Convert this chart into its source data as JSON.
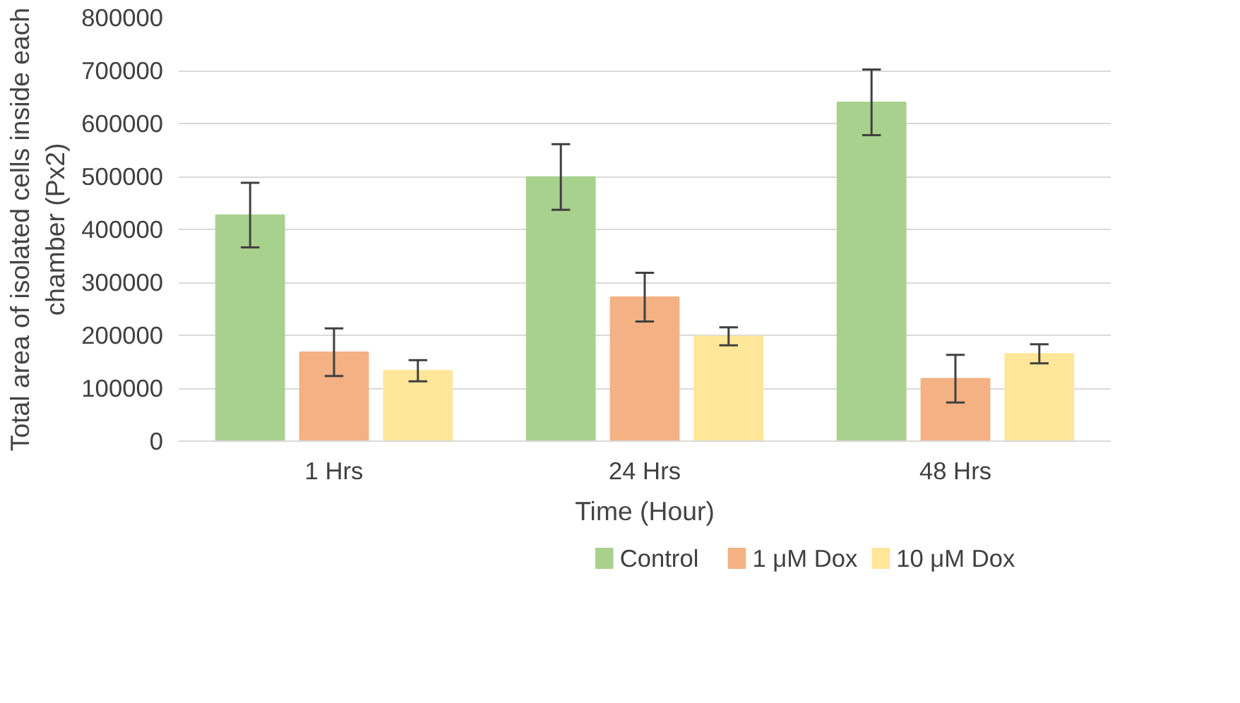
{
  "chart_data": {
    "type": "bar",
    "xlabel": "Time (Hour)",
    "ylabel": "Total area of isolated cells inside each chamber (Px2)",
    "categories": [
      "1 Hrs",
      "24 Hrs",
      "48 Hrs"
    ],
    "series": [
      {
        "name": "Control",
        "color": "#a9d18e",
        "values": [
          427000,
          499000,
          640000
        ],
        "errors": [
          61000,
          62000,
          62000
        ]
      },
      {
        "name": "1 μM Dox",
        "color": "#f4b183",
        "values": [
          168000,
          272000,
          118000
        ],
        "errors": [
          45000,
          46000,
          45000
        ]
      },
      {
        "name": "10 μM Dox",
        "color": "#ffe699",
        "values": [
          133000,
          198000,
          165000
        ],
        "errors": [
          20000,
          17000,
          18000
        ]
      }
    ],
    "ylim": [
      0,
      800000
    ],
    "yticks": [
      0,
      100000,
      200000,
      300000,
      400000,
      500000,
      600000,
      700000,
      800000
    ],
    "grid": "y",
    "legend": "bottom"
  }
}
